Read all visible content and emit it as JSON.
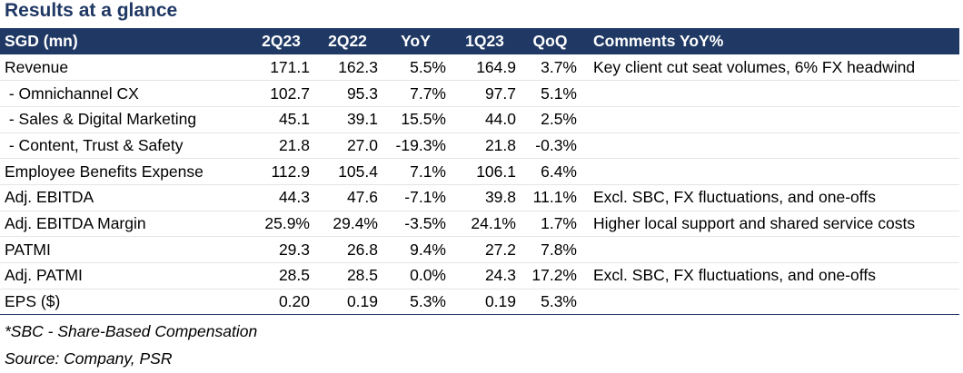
{
  "title": "Results at a glance",
  "table": {
    "headers": [
      "SGD (mn)",
      "2Q23",
      "2Q22",
      "YoY",
      "1Q23",
      "QoQ",
      "Comments YoY%"
    ],
    "rows": [
      [
        "Revenue",
        "171.1",
        "162.3",
        "5.5%",
        "164.9",
        "3.7%",
        "Key client cut seat volumes, 6% FX headwind"
      ],
      [
        " - Omnichannel CX",
        "102.7",
        "95.3",
        "7.7%",
        "97.7",
        "5.1%",
        ""
      ],
      [
        " - Sales & Digital Marketing",
        "45.1",
        "39.1",
        "15.5%",
        "44.0",
        "2.5%",
        ""
      ],
      [
        " - Content, Trust & Safety",
        "21.8",
        "27.0",
        "-19.3%",
        "21.8",
        "-0.3%",
        ""
      ],
      [
        "Employee Benefits Expense",
        "112.9",
        "105.4",
        "7.1%",
        "106.1",
        "6.4%",
        ""
      ],
      [
        "Adj. EBITDA",
        "44.3",
        "47.6",
        "-7.1%",
        "39.8",
        "11.1%",
        "Excl. SBC, FX fluctuations, and one-offs"
      ],
      [
        "Adj. EBITDA Margin",
        "25.9%",
        "29.4%",
        "-3.5%",
        "24.1%",
        "1.7%",
        "Higher local support and shared service costs"
      ],
      [
        "PATMI",
        "29.3",
        "26.8",
        "9.4%",
        "27.2",
        "7.8%",
        ""
      ],
      [
        "Adj. PATMI",
        "28.5",
        "28.5",
        "0.0%",
        "24.3",
        "17.2%",
        "Excl. SBC, FX fluctuations, and one-offs"
      ],
      [
        "EPS ($)",
        "0.20",
        "0.19",
        "5.3%",
        "0.19",
        "5.3%",
        ""
      ]
    ]
  },
  "footnotes": {
    "sbc": "*SBC  - Share-Based Compensation",
    "source": "Source: Company, PSR"
  },
  "colors": {
    "header_bg": "#1f3864",
    "title": "#1f3864"
  }
}
